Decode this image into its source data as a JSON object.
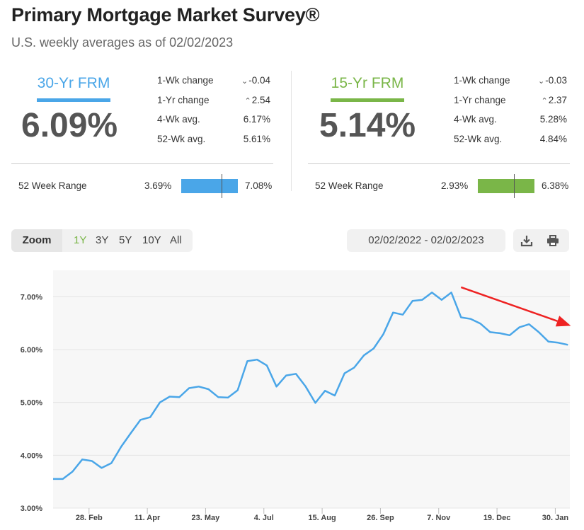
{
  "header": {
    "title": "Primary Mortgage Market Survey®",
    "subtitle": "U.S. weekly averages as of 02/02/2023"
  },
  "colors": {
    "frm30": "#4aa6e8",
    "frm15": "#7ab648",
    "arrow": "#ee2222",
    "grid": "#e4e4e4",
    "plot_bg": "#f7f7f7"
  },
  "frm30": {
    "name": "30-Yr FRM",
    "rate": "6.09%",
    "one_wk_change_label": "1-Wk change",
    "one_wk_change_icon": "chevron-down-icon",
    "one_wk_change": "-0.04",
    "one_yr_change_label": "1-Yr change",
    "one_yr_change_icon": "chevron-up-icon",
    "one_yr_change": "2.54",
    "four_wk_avg_label": "4-Wk avg.",
    "four_wk_avg": "6.17%",
    "fifty_two_wk_avg_label": "52-Wk avg.",
    "fifty_two_wk_avg": "5.61%",
    "range_label": "52 Week Range",
    "range_low": "3.69%",
    "range_high": "7.08%",
    "range_current_fraction": 0.71
  },
  "frm15": {
    "name": "15-Yr FRM",
    "rate": "5.14%",
    "one_wk_change_label": "1-Wk change",
    "one_wk_change_icon": "chevron-down-icon",
    "one_wk_change": "-0.03",
    "one_yr_change_label": "1-Yr change",
    "one_yr_change_icon": "chevron-up-icon",
    "one_yr_change": "2.37",
    "four_wk_avg_label": "4-Wk avg.",
    "four_wk_avg": "5.28%",
    "fifty_two_wk_avg_label": "52-Wk avg.",
    "fifty_two_wk_avg": "4.84%",
    "range_label": "52 Week Range",
    "range_low": "2.93%",
    "range_high": "6.38%",
    "range_current_fraction": 0.64
  },
  "controls": {
    "zoom_label": "Zoom",
    "zoom_options": [
      "1Y",
      "3Y",
      "5Y",
      "10Y",
      "All"
    ],
    "zoom_selected": "1Y",
    "date_range": "02/02/2022 - 02/02/2023",
    "download_icon": "download-icon",
    "print_icon": "print-icon"
  },
  "chart_data": {
    "type": "line",
    "title": "",
    "xlabel": "",
    "ylabel": "",
    "ylim": [
      3.0,
      7.5
    ],
    "yticks": [
      3.0,
      4.0,
      5.0,
      6.0,
      7.0
    ],
    "ytick_labels": [
      "3.00%",
      "4.00%",
      "5.00%",
      "6.00%",
      "7.00%"
    ],
    "xticks": [
      "28. Feb",
      "11. Apr",
      "23. May",
      "4. Jul",
      "15. Aug",
      "26. Sep",
      "7. Nov",
      "19. Dec",
      "30. Jan"
    ],
    "xtick_indices": [
      3.7,
      9.7,
      15.7,
      21.7,
      27.7,
      33.7,
      39.7,
      45.7,
      51.7
    ],
    "grid": true,
    "legend": "none",
    "series": [
      {
        "values": [
          3.55,
          3.55,
          3.69,
          3.92,
          3.89,
          3.76,
          3.85,
          4.16,
          4.42,
          4.67,
          4.72,
          5.0,
          5.11,
          5.1,
          5.27,
          5.3,
          5.25,
          5.1,
          5.09,
          5.23,
          5.78,
          5.81,
          5.7,
          5.3,
          5.51,
          5.54,
          5.3,
          4.99,
          5.22,
          5.13,
          5.55,
          5.66,
          5.89,
          6.02,
          6.29,
          6.7,
          6.66,
          6.92,
          6.94,
          7.08,
          6.94,
          7.08,
          6.61,
          6.58,
          6.49,
          6.33,
          6.31,
          6.27,
          6.42,
          6.48,
          6.33,
          6.15,
          6.13,
          6.09
        ]
      }
    ],
    "annotation": {
      "type": "arrow",
      "from_index": 42,
      "from_value": 7.18,
      "to_index": 53.3,
      "to_value": 6.45
    }
  }
}
